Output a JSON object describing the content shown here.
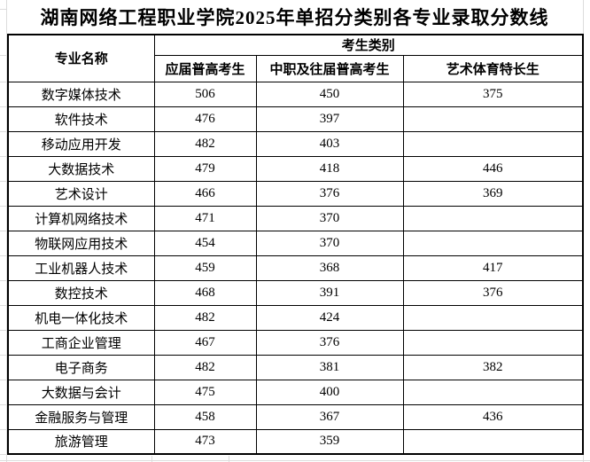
{
  "chart_data": {
    "type": "table",
    "title": "湖南网络工程职业学院2025年单招分类别各专业录取分数线",
    "header": {
      "major": "专业名称",
      "group": "考生类别",
      "sub": [
        "应届普高考生",
        "中职及往届普高考生",
        "艺术体育特长生"
      ]
    },
    "rows": [
      [
        "数字媒体技术",
        506,
        450,
        375
      ],
      [
        "软件技术",
        476,
        397,
        null
      ],
      [
        "移动应用开发",
        482,
        403,
        null
      ],
      [
        "大数据技术",
        479,
        418,
        446
      ],
      [
        "艺术设计",
        466,
        376,
        369
      ],
      [
        "计算机网络技术",
        471,
        370,
        null
      ],
      [
        "物联网应用技术",
        454,
        370,
        null
      ],
      [
        "工业机器人技术",
        459,
        368,
        417
      ],
      [
        "数控技术",
        468,
        391,
        376
      ],
      [
        "机电一体化技术",
        482,
        424,
        null
      ],
      [
        "工商企业管理",
        467,
        376,
        null
      ],
      [
        "电子商务",
        482,
        381,
        382
      ],
      [
        "大数据与会计",
        475,
        400,
        null
      ],
      [
        "金融服务与管理",
        458,
        367,
        436
      ],
      [
        "旅游管理",
        473,
        359,
        null
      ]
    ],
    "layout": {
      "grid": "black solid cell borders, thicker outer border",
      "legend_position": "none"
    },
    "colors": {
      "table_border": "#000000",
      "background": "#ffffff",
      "excel_gridline": "#dcdcdc"
    }
  }
}
